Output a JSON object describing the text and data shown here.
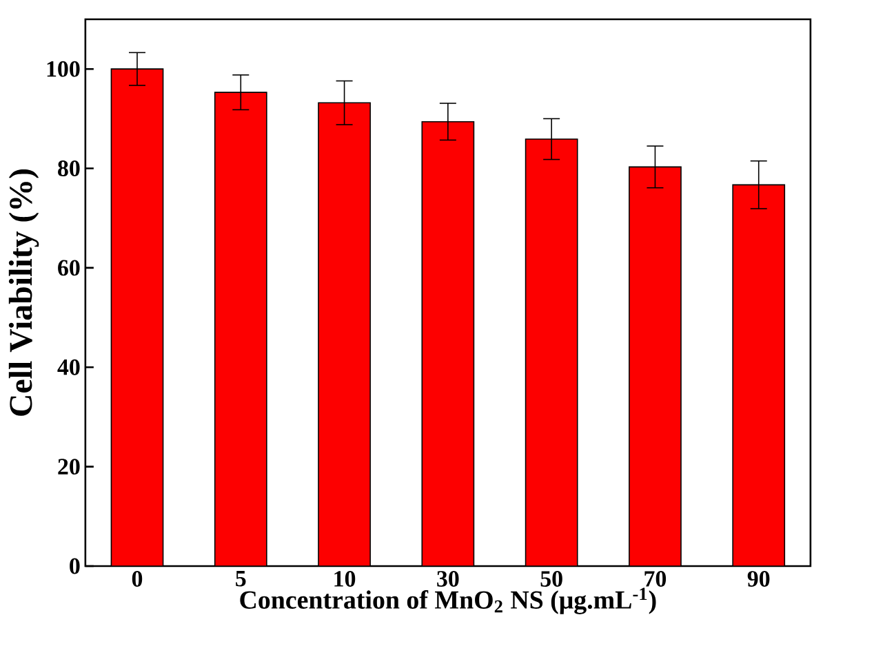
{
  "chart_data": {
    "type": "bar",
    "xlabel": "Concentration of MnO$_{2}$ NS (μg.mL$^{-1}$)",
    "ylabel": "Cell Viability (%)",
    "categories": [
      "0",
      "5",
      "10",
      "30",
      "50",
      "70",
      "90"
    ],
    "values": [
      100,
      95.3,
      93.2,
      89.4,
      85.9,
      80.3,
      76.7
    ],
    "errors": [
      3.3,
      3.5,
      4.4,
      3.7,
      4.1,
      4.2,
      4.8
    ],
    "color": "#fd0000",
    "ylim": [
      0,
      110
    ],
    "yticks": [
      0,
      20,
      40,
      60,
      80,
      100
    ]
  }
}
